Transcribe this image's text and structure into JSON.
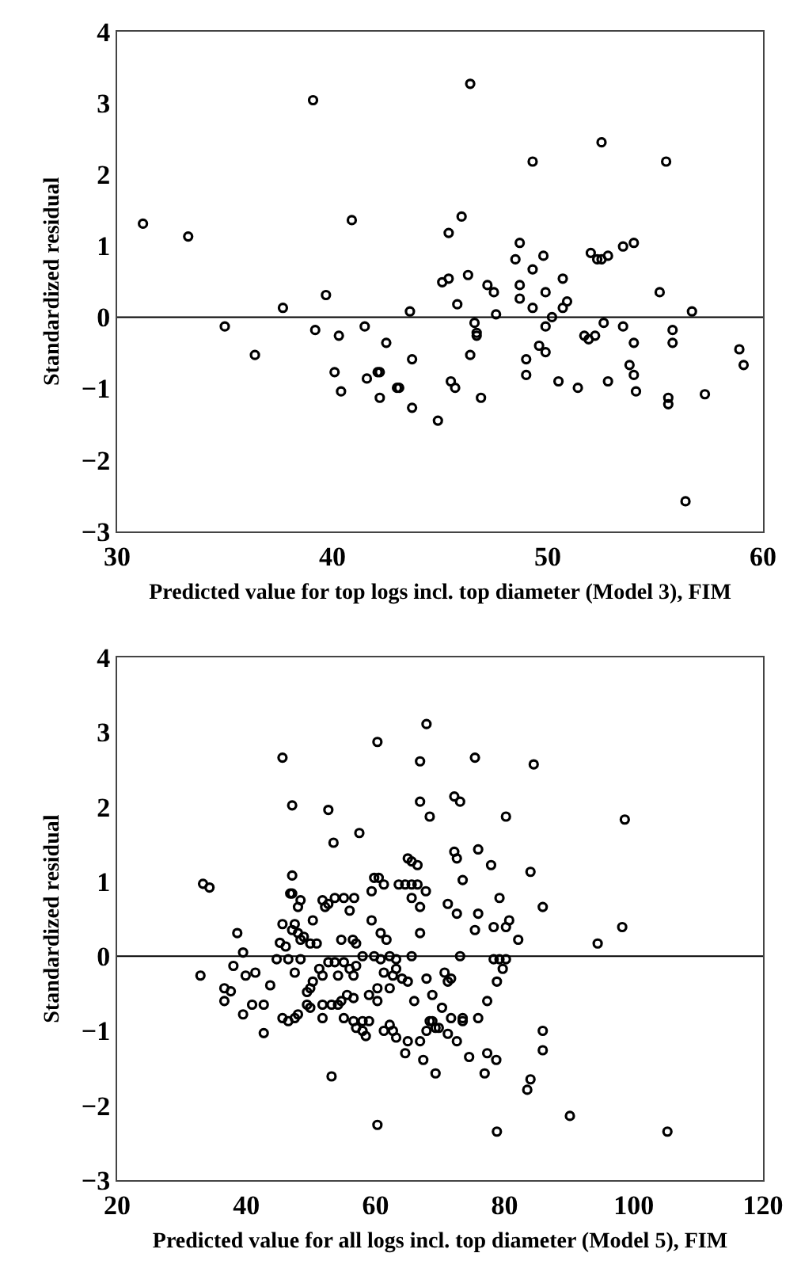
{
  "chart_data": [
    {
      "type": "scatter",
      "xlabel": "Predicted value for top logs incl. top diameter (Model 3), FIM",
      "ylabel": "Standardized residual",
      "xlim": [
        30,
        60
      ],
      "xticks": [
        30,
        40,
        50,
        60
      ],
      "ylim": [
        -3,
        4
      ],
      "yticks": [
        {
          "value": -3,
          "label": "−3"
        },
        {
          "value": -2,
          "label": "−2"
        },
        {
          "value": -1,
          "label": "−1"
        },
        0,
        1,
        2,
        3,
        4
      ],
      "marker": "circle",
      "ref_lines": [
        {
          "axis": "y",
          "value": 0,
          "label": null,
          "color": "#000000"
        }
      ],
      "series": [
        {
          "color": "#000000",
          "x": [
            31.2,
            33.3,
            37.7,
            39.1,
            39.7,
            40.9,
            43.6,
            45.1,
            45.4,
            45.4,
            45.8,
            46.0,
            46.3,
            46.4,
            47.2,
            47.5,
            47.6,
            48.5,
            48.7,
            48.7,
            48.7,
            49.3,
            49.3,
            49.3,
            49.8,
            49.9,
            50.2,
            50.7,
            50.7,
            50.9,
            52.0,
            52.3,
            52.5,
            52.5,
            52.8,
            53.5,
            54.0,
            55.2,
            55.5,
            56.7,
            35.0,
            36.4,
            39.2,
            40.3,
            40.1,
            40.4,
            41.5,
            41.6,
            42.1,
            42.2,
            42.2,
            42.5,
            43.0,
            43.1,
            43.7,
            43.7,
            44.9,
            45.5,
            45.7,
            46.4,
            46.6,
            46.7,
            46.7,
            46.9,
            49.0,
            49.0,
            49.6,
            49.9,
            49.9,
            50.5,
            51.4,
            51.7,
            51.9,
            52.2,
            52.6,
            52.8,
            53.5,
            53.8,
            54.0,
            54.0,
            54.1,
            55.6,
            55.6,
            55.8,
            55.8,
            56.4,
            57.3,
            58.9,
            59.1
          ],
          "values": [
            1.31,
            1.13,
            0.13,
            3.04,
            0.31,
            1.36,
            0.08,
            0.49,
            0.54,
            1.18,
            0.18,
            1.41,
            0.59,
            3.27,
            0.45,
            0.35,
            0.04,
            0.81,
            1.04,
            0.45,
            0.26,
            2.18,
            0.67,
            0.13,
            0.86,
            0.35,
            0.0,
            0.54,
            0.13,
            0.22,
            0.9,
            0.81,
            0.81,
            2.45,
            0.86,
            0.99,
            1.04,
            0.35,
            2.18,
            0.08,
            -0.13,
            -0.53,
            -0.18,
            -0.26,
            -0.77,
            -1.04,
            -0.13,
            -0.86,
            -0.77,
            -0.77,
            -1.13,
            -0.36,
            -0.99,
            -0.99,
            -0.59,
            -1.27,
            -1.45,
            -0.9,
            -0.99,
            -0.53,
            -0.08,
            -0.22,
            -0.26,
            -1.13,
            -0.59,
            -0.81,
            -0.4,
            -0.49,
            -0.13,
            -0.9,
            -0.99,
            -0.26,
            -0.31,
            -0.26,
            -0.08,
            -0.9,
            -0.13,
            -0.67,
            -0.81,
            -0.36,
            -1.04,
            -1.13,
            -1.22,
            -0.18,
            -0.36,
            -2.58,
            -1.08,
            -0.45,
            -0.67
          ]
        }
      ]
    },
    {
      "type": "scatter",
      "xlabel": "Predicted value for all logs incl. top diameter (Model 5), FIM",
      "ylabel": "Standardized residual",
      "xlim": [
        20,
        120
      ],
      "xticks": [
        20,
        40,
        60,
        80,
        100,
        120
      ],
      "ylim": [
        -3,
        4
      ],
      "yticks": [
        {
          "value": -3,
          "label": "−3"
        },
        {
          "value": -2,
          "label": "−2"
        },
        {
          "value": -1,
          "label": "−1"
        },
        0,
        1,
        2,
        3,
        4
      ],
      "marker": "circle",
      "ref_lines": [
        {
          "axis": "y",
          "value": 0,
          "label": null,
          "color": "#000000"
        }
      ],
      "series": [
        {
          "color": "#000000",
          "x": [
            33.3,
            34.3,
            38.6,
            45.6,
            47.1,
            47.1,
            46.8,
            47.1,
            48.0,
            48.4,
            45.6,
            47.5,
            47.1,
            48.0,
            48.9,
            45.2,
            46.1,
            48.4,
            49.9,
            50.9,
            50.3,
            51.8,
            52.2,
            52.7,
            52.7,
            53.5,
            53.7,
            55.1,
            56.7,
            54.7,
            56.0,
            56.5,
            57.0,
            57.5,
            59.4,
            59.4,
            59.8,
            60.5,
            60.3,
            61.3,
            60.8,
            61.7,
            63.6,
            64.6,
            65.6,
            66.5,
            65.0,
            65.6,
            66.5,
            65.6,
            66.9,
            66.9,
            66.9,
            66.9,
            67.8,
            67.9,
            68.4,
            71.2,
            72.2,
            73.1,
            72.2,
            72.6,
            72.6,
            73.5,
            75.4,
            75.4,
            75.9,
            75.9,
            77.9,
            78.3,
            80.2,
            80.7,
            79.2,
            80.2,
            82.1,
            84.0,
            84.5,
            85.9,
            94.4,
            98.2,
            98.6,
            32.9,
            36.6,
            37.6,
            36.6,
            38.0,
            39.5,
            39.5,
            39.9,
            41.4,
            40.9,
            42.7,
            42.7,
            43.7,
            44.7,
            46.5,
            48.4,
            45.6,
            46.5,
            47.5,
            48.0,
            47.5,
            49.4,
            50.3,
            49.9,
            49.4,
            49.9,
            51.3,
            51.8,
            52.7,
            53.7,
            54.2,
            51.8,
            51.8,
            53.2,
            54.2,
            53.2,
            54.7,
            55.1,
            55.1,
            56.0,
            56.6,
            57.0,
            55.6,
            56.6,
            56.6,
            57.0,
            58.0,
            58.5,
            58.0,
            59.0,
            58.0,
            59.8,
            60.8,
            62.2,
            63.2,
            59.0,
            60.3,
            60.3,
            60.3,
            61.3,
            62.7,
            62.2,
            63.2,
            64.1,
            65.0,
            61.3,
            62.2,
            62.7,
            63.2,
            64.6,
            65.0,
            65.6,
            66.0,
            66.9,
            67.9,
            68.4,
            68.8,
            69.3,
            69.8,
            67.4,
            67.9,
            68.8,
            69.3,
            70.3,
            70.7,
            71.2,
            71.7,
            71.2,
            71.7,
            72.6,
            73.1,
            73.5,
            73.5,
            74.5,
            75.9,
            76.9,
            77.3,
            77.3,
            78.7,
            78.3,
            79.2,
            80.2,
            78.8,
            79.7,
            78.8,
            83.5,
            84.0,
            85.9,
            85.9,
            90.1,
            105.2
          ],
          "values": [
            0.97,
            0.92,
            0.31,
            2.66,
            2.02,
            1.08,
            0.84,
            0.84,
            0.66,
            0.75,
            0.43,
            0.43,
            0.35,
            0.31,
            0.26,
            0.18,
            0.13,
            0.22,
            0.17,
            0.17,
            0.48,
            0.75,
            0.66,
            0.7,
            1.96,
            1.52,
            0.78,
            0.78,
            0.78,
            0.22,
            0.61,
            0.22,
            0.17,
            1.65,
            0.48,
            0.87,
            1.05,
            1.05,
            2.87,
            0.96,
            0.31,
            0.22,
            0.96,
            0.96,
            0.96,
            0.96,
            1.31,
            1.27,
            1.22,
            0.78,
            2.61,
            2.07,
            0.66,
            0.31,
            0.87,
            3.11,
            1.87,
            0.7,
            2.14,
            2.07,
            1.4,
            1.31,
            0.57,
            1.02,
            2.66,
            0.35,
            1.43,
            0.57,
            1.22,
            0.39,
            0.39,
            0.48,
            0.78,
            1.87,
            0.22,
            1.13,
            2.57,
            0.66,
            0.17,
            0.39,
            1.83,
            -0.26,
            -0.43,
            -0.47,
            -0.6,
            -0.13,
            0.05,
            -0.78,
            -0.26,
            -0.22,
            -0.65,
            -0.65,
            -1.03,
            -0.39,
            -0.04,
            -0.04,
            -0.04,
            -0.83,
            -0.87,
            -0.83,
            -0.78,
            -0.22,
            -0.48,
            -0.34,
            -0.43,
            -0.65,
            -0.69,
            -0.17,
            -0.26,
            -0.08,
            -0.08,
            -0.26,
            -0.83,
            -0.65,
            -0.65,
            -0.65,
            -1.61,
            -0.6,
            -0.83,
            -0.08,
            -0.17,
            -0.26,
            -0.13,
            -0.52,
            -0.56,
            -0.87,
            -0.96,
            -1.0,
            -1.07,
            -0.87,
            -0.87,
            0.0,
            0.0,
            -0.04,
            0.0,
            -0.04,
            -0.52,
            -0.43,
            -0.6,
            -2.26,
            -0.22,
            -0.26,
            -0.43,
            -0.17,
            -0.3,
            -0.34,
            -1.0,
            -0.92,
            -1.0,
            -1.09,
            -1.3,
            -1.14,
            0.0,
            -0.6,
            -1.14,
            -1.0,
            -0.87,
            -0.87,
            -0.96,
            -0.96,
            -1.39,
            -0.3,
            -0.52,
            -1.57,
            -0.69,
            -0.22,
            -0.34,
            -0.3,
            -1.04,
            -0.83,
            -1.14,
            0.0,
            -0.83,
            -0.87,
            -1.35,
            -0.83,
            -1.57,
            -0.6,
            -1.3,
            -1.39,
            -0.04,
            -0.04,
            -0.04,
            -0.34,
            -0.17,
            -2.35,
            -1.79,
            -1.65,
            -1.0,
            -1.26,
            -2.14,
            -2.35
          ]
        }
      ]
    }
  ]
}
